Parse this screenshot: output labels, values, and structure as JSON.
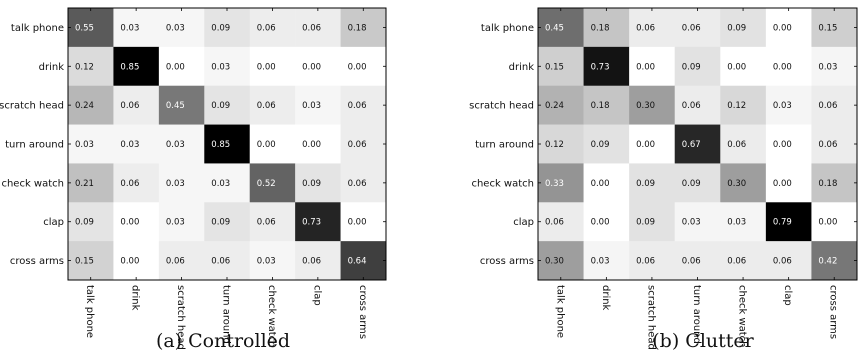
{
  "chart_data": [
    {
      "type": "heatmap",
      "caption": "(a) Controlled",
      "row_labels": [
        "talk phone",
        "drink",
        "scratch head",
        "turn around",
        "check watch",
        "clap",
        "cross arms"
      ],
      "col_labels": [
        "talk phone",
        "drink",
        "scratch head",
        "turn around",
        "check watch",
        "clap",
        "cross arms"
      ],
      "values": [
        [
          0.55,
          0.03,
          0.03,
          0.09,
          0.06,
          0.06,
          0.18
        ],
        [
          0.12,
          0.85,
          0.0,
          0.03,
          0.0,
          0.0,
          0.0
        ],
        [
          0.24,
          0.06,
          0.45,
          0.09,
          0.06,
          0.03,
          0.06
        ],
        [
          0.03,
          0.03,
          0.03,
          0.85,
          0.0,
          0.0,
          0.06
        ],
        [
          0.21,
          0.06,
          0.03,
          0.03,
          0.52,
          0.09,
          0.06
        ],
        [
          0.09,
          0.0,
          0.03,
          0.09,
          0.06,
          0.73,
          0.0
        ],
        [
          0.15,
          0.0,
          0.06,
          0.06,
          0.03,
          0.06,
          0.64
        ]
      ],
      "colormap": "grayscale-inverted"
    },
    {
      "type": "heatmap",
      "caption": "(b) Clutter",
      "row_labels": [
        "talk phone",
        "drink",
        "scratch head",
        "turn around",
        "check watch",
        "clap",
        "cross arms"
      ],
      "col_labels": [
        "talk phone",
        "drink",
        "scratch head",
        "turn around",
        "check watch",
        "clap",
        "cross arms"
      ],
      "values": [
        [
          0.45,
          0.18,
          0.06,
          0.06,
          0.09,
          0.0,
          0.15
        ],
        [
          0.15,
          0.73,
          0.0,
          0.09,
          0.0,
          0.0,
          0.03
        ],
        [
          0.24,
          0.18,
          0.3,
          0.06,
          0.12,
          0.03,
          0.06
        ],
        [
          0.12,
          0.09,
          0.0,
          0.67,
          0.06,
          0.0,
          0.06
        ],
        [
          0.33,
          0.0,
          0.09,
          0.09,
          0.3,
          0.0,
          0.18
        ],
        [
          0.06,
          0.0,
          0.09,
          0.03,
          0.03,
          0.79,
          0.0
        ],
        [
          0.3,
          0.03,
          0.06,
          0.06,
          0.06,
          0.06,
          0.42
        ]
      ],
      "colormap": "grayscale-inverted"
    }
  ],
  "colors": {
    "text_dark": "#111111",
    "text_light": "#ffffff",
    "border": "#000000"
  }
}
